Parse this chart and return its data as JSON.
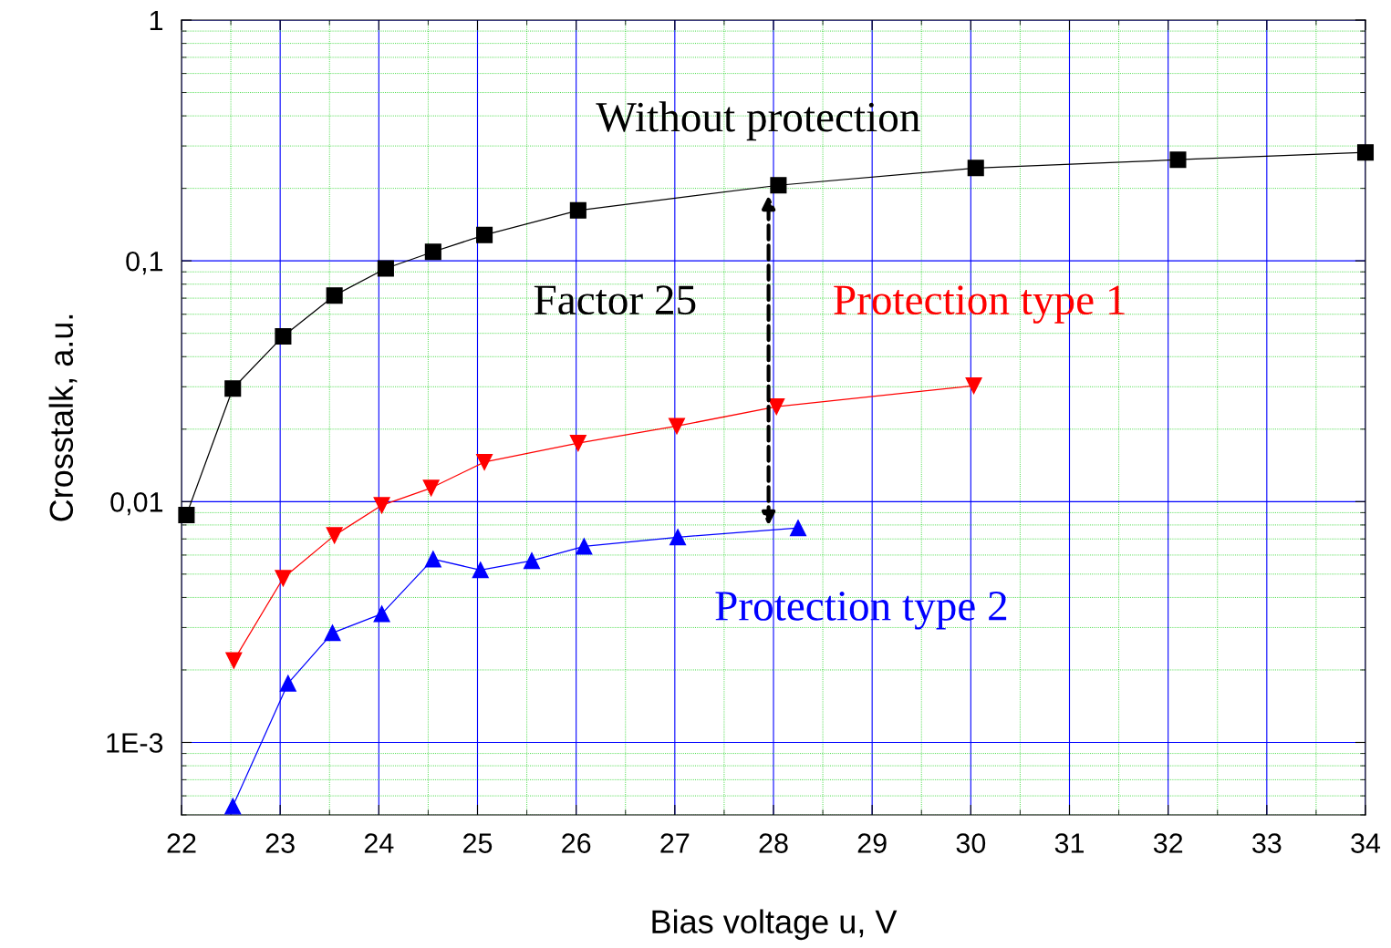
{
  "chart_data": {
    "type": "line",
    "xlabel": "Bias voltage u, V",
    "ylabel": "Crosstalk, a.u.",
    "log": "y",
    "grid": true,
    "legend": false,
    "line_style": "solid",
    "xlim": [
      22,
      34
    ],
    "xticks": [
      22,
      {
        "value": 22.5,
        "label": null
      },
      23,
      {
        "value": 23.5,
        "label": null
      },
      24,
      {
        "value": 24.5,
        "label": null
      },
      25,
      {
        "value": 25.5,
        "label": null
      },
      26,
      {
        "value": 26.5,
        "label": null
      },
      27,
      {
        "value": 27.5,
        "label": null
      },
      28,
      {
        "value": 28.5,
        "label": null
      },
      29,
      {
        "value": 29.5,
        "label": null
      },
      30,
      {
        "value": 30.5,
        "label": null
      },
      31,
      {
        "value": 31.5,
        "label": null
      },
      32,
      {
        "value": 32.5,
        "label": null
      },
      33,
      {
        "value": 33.5,
        "label": null
      },
      34
    ],
    "ylim": [
      0.0005,
      1
    ],
    "yticks": [
      {
        "value": 0.0005,
        "label": null
      },
      {
        "value": 0.0006,
        "label": null
      },
      {
        "value": 0.0007,
        "label": null
      },
      {
        "value": 0.0008,
        "label": null
      },
      {
        "value": 0.0009,
        "label": null
      },
      {
        "value": 0.001,
        "label": "1E-3"
      },
      {
        "value": 0.002,
        "label": null
      },
      {
        "value": 0.003,
        "label": null
      },
      {
        "value": 0.004,
        "label": null
      },
      {
        "value": 0.005,
        "label": null
      },
      {
        "value": 0.006,
        "label": null
      },
      {
        "value": 0.007,
        "label": null
      },
      {
        "value": 0.008,
        "label": null
      },
      {
        "value": 0.009,
        "label": null
      },
      {
        "value": 0.01,
        "label": "0,01"
      },
      {
        "value": 0.02,
        "label": null
      },
      {
        "value": 0.03,
        "label": null
      },
      {
        "value": 0.04,
        "label": null
      },
      {
        "value": 0.05,
        "label": null
      },
      {
        "value": 0.06,
        "label": null
      },
      {
        "value": 0.07,
        "label": null
      },
      {
        "value": 0.08,
        "label": null
      },
      {
        "value": 0.09,
        "label": null
      },
      {
        "value": 0.1,
        "label": "0,1"
      },
      {
        "value": 0.2,
        "label": null
      },
      {
        "value": 0.3,
        "label": null
      },
      {
        "value": 0.4,
        "label": null
      },
      {
        "value": 0.5,
        "label": null
      },
      {
        "value": 0.6,
        "label": null
      },
      {
        "value": 0.7,
        "label": null
      },
      {
        "value": 0.8,
        "label": null
      },
      {
        "value": 0.9,
        "label": null
      },
      1
    ],
    "annotations": [
      "Factor 25"
    ],
    "series": [
      {
        "name": "Without protection",
        "color": "#000000",
        "marker": "square",
        "x": [
          22.05,
          22.52,
          23.03,
          23.55,
          24.07,
          24.55,
          25.07,
          26.02,
          28.05,
          30.05,
          32.1,
          34.0
        ],
        "values": [
          0.0088,
          0.0295,
          0.0486,
          0.0718,
          0.093,
          0.109,
          0.128,
          0.162,
          0.206,
          0.243,
          0.263,
          0.282
        ]
      },
      {
        "name": "Protection type 1",
        "color": "#ff0000",
        "marker": "triangle_down",
        "x": [
          22.53,
          23.03,
          23.55,
          24.03,
          24.53,
          25.07,
          26.02,
          27.02,
          28.03,
          30.03
        ],
        "values": [
          0.00219,
          0.00481,
          0.00724,
          0.00966,
          0.0114,
          0.0146,
          0.0175,
          0.0206,
          0.0248,
          0.0303
        ]
      },
      {
        "name": "Protection type 2",
        "color": "#0000ff",
        "marker": "triangle",
        "x": [
          22.52,
          23.08,
          23.53,
          24.03,
          24.55,
          25.03,
          25.55,
          26.08,
          27.03,
          28.25
        ],
        "values": [
          0.000543,
          0.00176,
          0.00285,
          0.00342,
          0.00577,
          0.0052,
          0.00568,
          0.00652,
          0.00712,
          0.00777
        ]
      }
    ]
  }
}
